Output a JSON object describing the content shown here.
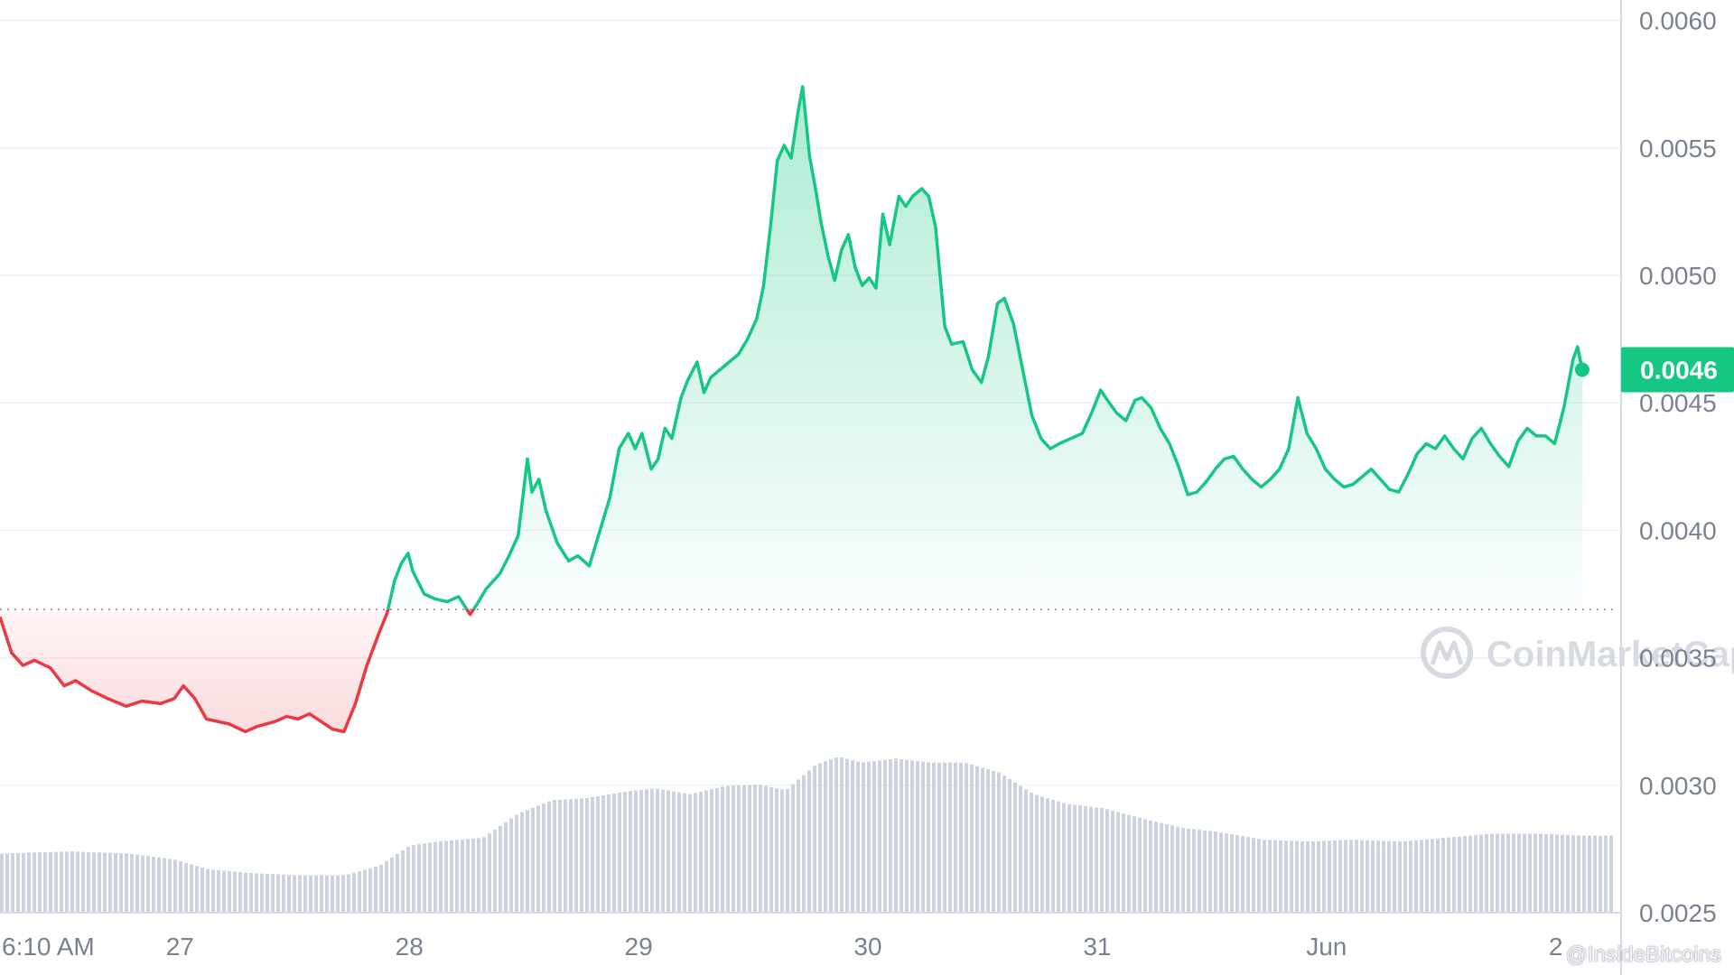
{
  "chart_data": {
    "type": "area",
    "title": "",
    "xlabel": "",
    "ylabel": "",
    "ylim": [
      0.0025,
      0.00608
    ],
    "y_ticks": [
      "0.0060",
      "0.0055",
      "0.0050",
      "0.0045",
      "0.0040",
      "0.0035",
      "0.0030",
      "0.0025"
    ],
    "y_tick_values": [
      0.006,
      0.0055,
      0.005,
      0.0045,
      0.004,
      0.0035,
      0.003,
      0.0025
    ],
    "x_ticks": [
      "6:10 AM",
      "27",
      "28",
      "29",
      "30",
      "31",
      "Jun",
      "2"
    ],
    "x_tick_values": [
      0,
      0.785,
      1.785,
      2.785,
      3.785,
      4.785,
      5.785,
      6.785
    ],
    "x_unit": "days since 6:10 AM, May 26",
    "baseline": 0.00369,
    "baseline_style": "dotted",
    "current_price": {
      "value": 0.00463,
      "label": "0.0046",
      "color": "#16c784"
    },
    "colors": {
      "up": "#16c784",
      "down": "#ea3943",
      "volume": "#cdd2df",
      "grid": "#eff2f5"
    },
    "grid": true,
    "series": [
      {
        "values": [
          [
            0.0,
            0.00366
          ],
          [
            0.05,
            0.00352
          ],
          [
            0.1,
            0.00347
          ],
          [
            0.15,
            0.00349
          ],
          [
            0.22,
            0.00346
          ],
          [
            0.28,
            0.00339
          ],
          [
            0.33,
            0.00341
          ],
          [
            0.4,
            0.00337
          ],
          [
            0.47,
            0.00334
          ],
          [
            0.55,
            0.00331
          ],
          [
            0.62,
            0.00333
          ],
          [
            0.7,
            0.00332
          ],
          [
            0.76,
            0.00334
          ],
          [
            0.8,
            0.00339
          ],
          [
            0.85,
            0.00334
          ],
          [
            0.9,
            0.00326
          ],
          [
            1.0,
            0.00324
          ],
          [
            1.07,
            0.00321
          ],
          [
            1.12,
            0.00323
          ],
          [
            1.2,
            0.00325
          ],
          [
            1.25,
            0.00327
          ],
          [
            1.3,
            0.00326
          ],
          [
            1.35,
            0.00328
          ],
          [
            1.4,
            0.00325
          ],
          [
            1.45,
            0.00322
          ],
          [
            1.5,
            0.00321
          ],
          [
            1.55,
            0.00332
          ],
          [
            1.6,
            0.00347
          ],
          [
            1.65,
            0.00359
          ],
          [
            1.69,
            0.00368
          ],
          [
            1.72,
            0.0038
          ],
          [
            1.75,
            0.00387
          ],
          [
            1.78,
            0.00391
          ],
          [
            1.8,
            0.00384
          ],
          [
            1.85,
            0.00375
          ],
          [
            1.9,
            0.00373
          ],
          [
            1.95,
            0.00372
          ],
          [
            2.0,
            0.00374
          ],
          [
            2.05,
            0.00367
          ],
          [
            2.08,
            0.00371
          ],
          [
            2.12,
            0.00377
          ],
          [
            2.18,
            0.00383
          ],
          [
            2.22,
            0.0039
          ],
          [
            2.26,
            0.00398
          ],
          [
            2.3,
            0.00428
          ],
          [
            2.32,
            0.00415
          ],
          [
            2.35,
            0.0042
          ],
          [
            2.38,
            0.00408
          ],
          [
            2.43,
            0.00395
          ],
          [
            2.48,
            0.00388
          ],
          [
            2.52,
            0.0039
          ],
          [
            2.57,
            0.00386
          ],
          [
            2.62,
            0.00401
          ],
          [
            2.66,
            0.00413
          ],
          [
            2.7,
            0.00432
          ],
          [
            2.74,
            0.00438
          ],
          [
            2.77,
            0.00432
          ],
          [
            2.8,
            0.00438
          ],
          [
            2.84,
            0.00424
          ],
          [
            2.87,
            0.00428
          ],
          [
            2.9,
            0.0044
          ],
          [
            2.93,
            0.00436
          ],
          [
            2.97,
            0.00452
          ],
          [
            3.0,
            0.00459
          ],
          [
            3.04,
            0.00466
          ],
          [
            3.07,
            0.00454
          ],
          [
            3.1,
            0.0046
          ],
          [
            3.14,
            0.00463
          ],
          [
            3.18,
            0.00466
          ],
          [
            3.22,
            0.00469
          ],
          [
            3.26,
            0.00475
          ],
          [
            3.3,
            0.00483
          ],
          [
            3.33,
            0.00496
          ],
          [
            3.36,
            0.00519
          ],
          [
            3.39,
            0.00545
          ],
          [
            3.42,
            0.00551
          ],
          [
            3.45,
            0.00546
          ],
          [
            3.48,
            0.00564
          ],
          [
            3.5,
            0.00574
          ],
          [
            3.53,
            0.00547
          ],
          [
            3.56,
            0.00532
          ],
          [
            3.58,
            0.00521
          ],
          [
            3.61,
            0.00508
          ],
          [
            3.64,
            0.00498
          ],
          [
            3.67,
            0.0051
          ],
          [
            3.7,
            0.00516
          ],
          [
            3.73,
            0.00503
          ],
          [
            3.76,
            0.00496
          ],
          [
            3.79,
            0.00499
          ],
          [
            3.82,
            0.00495
          ],
          [
            3.85,
            0.00524
          ],
          [
            3.88,
            0.00512
          ],
          [
            3.92,
            0.00531
          ],
          [
            3.95,
            0.00527
          ],
          [
            3.98,
            0.00531
          ],
          [
            4.02,
            0.00534
          ],
          [
            4.05,
            0.00531
          ],
          [
            4.08,
            0.00519
          ],
          [
            4.12,
            0.0048
          ],
          [
            4.15,
            0.00473
          ],
          [
            4.2,
            0.00474
          ],
          [
            4.24,
            0.00463
          ],
          [
            4.28,
            0.00458
          ],
          [
            4.31,
            0.00468
          ],
          [
            4.35,
            0.00489
          ],
          [
            4.38,
            0.00491
          ],
          [
            4.42,
            0.00481
          ],
          [
            4.46,
            0.00463
          ],
          [
            4.5,
            0.00445
          ],
          [
            4.54,
            0.00436
          ],
          [
            4.58,
            0.00432
          ],
          [
            4.62,
            0.00434
          ],
          [
            4.67,
            0.00436
          ],
          [
            4.72,
            0.00438
          ],
          [
            4.76,
            0.00446
          ],
          [
            4.8,
            0.00455
          ],
          [
            4.83,
            0.00451
          ],
          [
            4.87,
            0.00446
          ],
          [
            4.91,
            0.00443
          ],
          [
            4.95,
            0.00451
          ],
          [
            4.98,
            0.00452
          ],
          [
            5.02,
            0.00448
          ],
          [
            5.06,
            0.0044
          ],
          [
            5.1,
            0.00434
          ],
          [
            5.14,
            0.00425
          ],
          [
            5.18,
            0.00414
          ],
          [
            5.22,
            0.00415
          ],
          [
            5.26,
            0.00419
          ],
          [
            5.3,
            0.00424
          ],
          [
            5.34,
            0.00428
          ],
          [
            5.38,
            0.00429
          ],
          [
            5.42,
            0.00424
          ],
          [
            5.46,
            0.0042
          ],
          [
            5.5,
            0.00417
          ],
          [
            5.54,
            0.0042
          ],
          [
            5.58,
            0.00424
          ],
          [
            5.62,
            0.00432
          ],
          [
            5.66,
            0.00452
          ],
          [
            5.7,
            0.00438
          ],
          [
            5.74,
            0.00432
          ],
          [
            5.78,
            0.00424
          ],
          [
            5.82,
            0.0042
          ],
          [
            5.86,
            0.00417
          ],
          [
            5.9,
            0.00418
          ],
          [
            5.94,
            0.00421
          ],
          [
            5.98,
            0.00424
          ],
          [
            6.02,
            0.0042
          ],
          [
            6.06,
            0.00416
          ],
          [
            6.1,
            0.00415
          ],
          [
            6.14,
            0.00422
          ],
          [
            6.18,
            0.0043
          ],
          [
            6.22,
            0.00434
          ],
          [
            6.26,
            0.00432
          ],
          [
            6.3,
            0.00437
          ],
          [
            6.34,
            0.00432
          ],
          [
            6.38,
            0.00428
          ],
          [
            6.42,
            0.00436
          ],
          [
            6.46,
            0.0044
          ],
          [
            6.5,
            0.00434
          ],
          [
            6.54,
            0.00429
          ],
          [
            6.58,
            0.00425
          ],
          [
            6.62,
            0.00435
          ],
          [
            6.66,
            0.0044
          ],
          [
            6.7,
            0.00437
          ],
          [
            6.74,
            0.00437
          ],
          [
            6.78,
            0.00434
          ],
          [
            6.82,
            0.00448
          ],
          [
            6.86,
            0.00467
          ],
          [
            6.88,
            0.00472
          ],
          [
            6.9,
            0.00463
          ]
        ]
      }
    ],
    "volume": {
      "values": [
        [
          0.0,
          0.3
        ],
        [
          0.3,
          0.31
        ],
        [
          0.55,
          0.3
        ],
        [
          0.75,
          0.27
        ],
        [
          0.9,
          0.22
        ],
        [
          1.1,
          0.2
        ],
        [
          1.3,
          0.19
        ],
        [
          1.5,
          0.19
        ],
        [
          1.65,
          0.24
        ],
        [
          1.78,
          0.34
        ],
        [
          1.9,
          0.36
        ],
        [
          2.1,
          0.38
        ],
        [
          2.25,
          0.5
        ],
        [
          2.4,
          0.57
        ],
        [
          2.55,
          0.58
        ],
        [
          2.7,
          0.61
        ],
        [
          2.85,
          0.63
        ],
        [
          3.0,
          0.6
        ],
        [
          3.15,
          0.64
        ],
        [
          3.3,
          0.65
        ],
        [
          3.42,
          0.62
        ],
        [
          3.55,
          0.75
        ],
        [
          3.65,
          0.79
        ],
        [
          3.75,
          0.76
        ],
        [
          3.9,
          0.78
        ],
        [
          4.05,
          0.76
        ],
        [
          4.2,
          0.76
        ],
        [
          4.35,
          0.71
        ],
        [
          4.5,
          0.6
        ],
        [
          4.65,
          0.55
        ],
        [
          4.8,
          0.53
        ],
        [
          5.0,
          0.47
        ],
        [
          5.15,
          0.43
        ],
        [
          5.3,
          0.41
        ],
        [
          5.5,
          0.37
        ],
        [
          5.7,
          0.36
        ],
        [
          5.9,
          0.37
        ],
        [
          6.1,
          0.36
        ],
        [
          6.3,
          0.38
        ],
        [
          6.5,
          0.4
        ],
        [
          6.7,
          0.4
        ],
        [
          6.9,
          0.39
        ]
      ]
    }
  },
  "watermark": {
    "text": "CoinMarketCap"
  },
  "credit": {
    "text": "@InsideBitcoins"
  }
}
